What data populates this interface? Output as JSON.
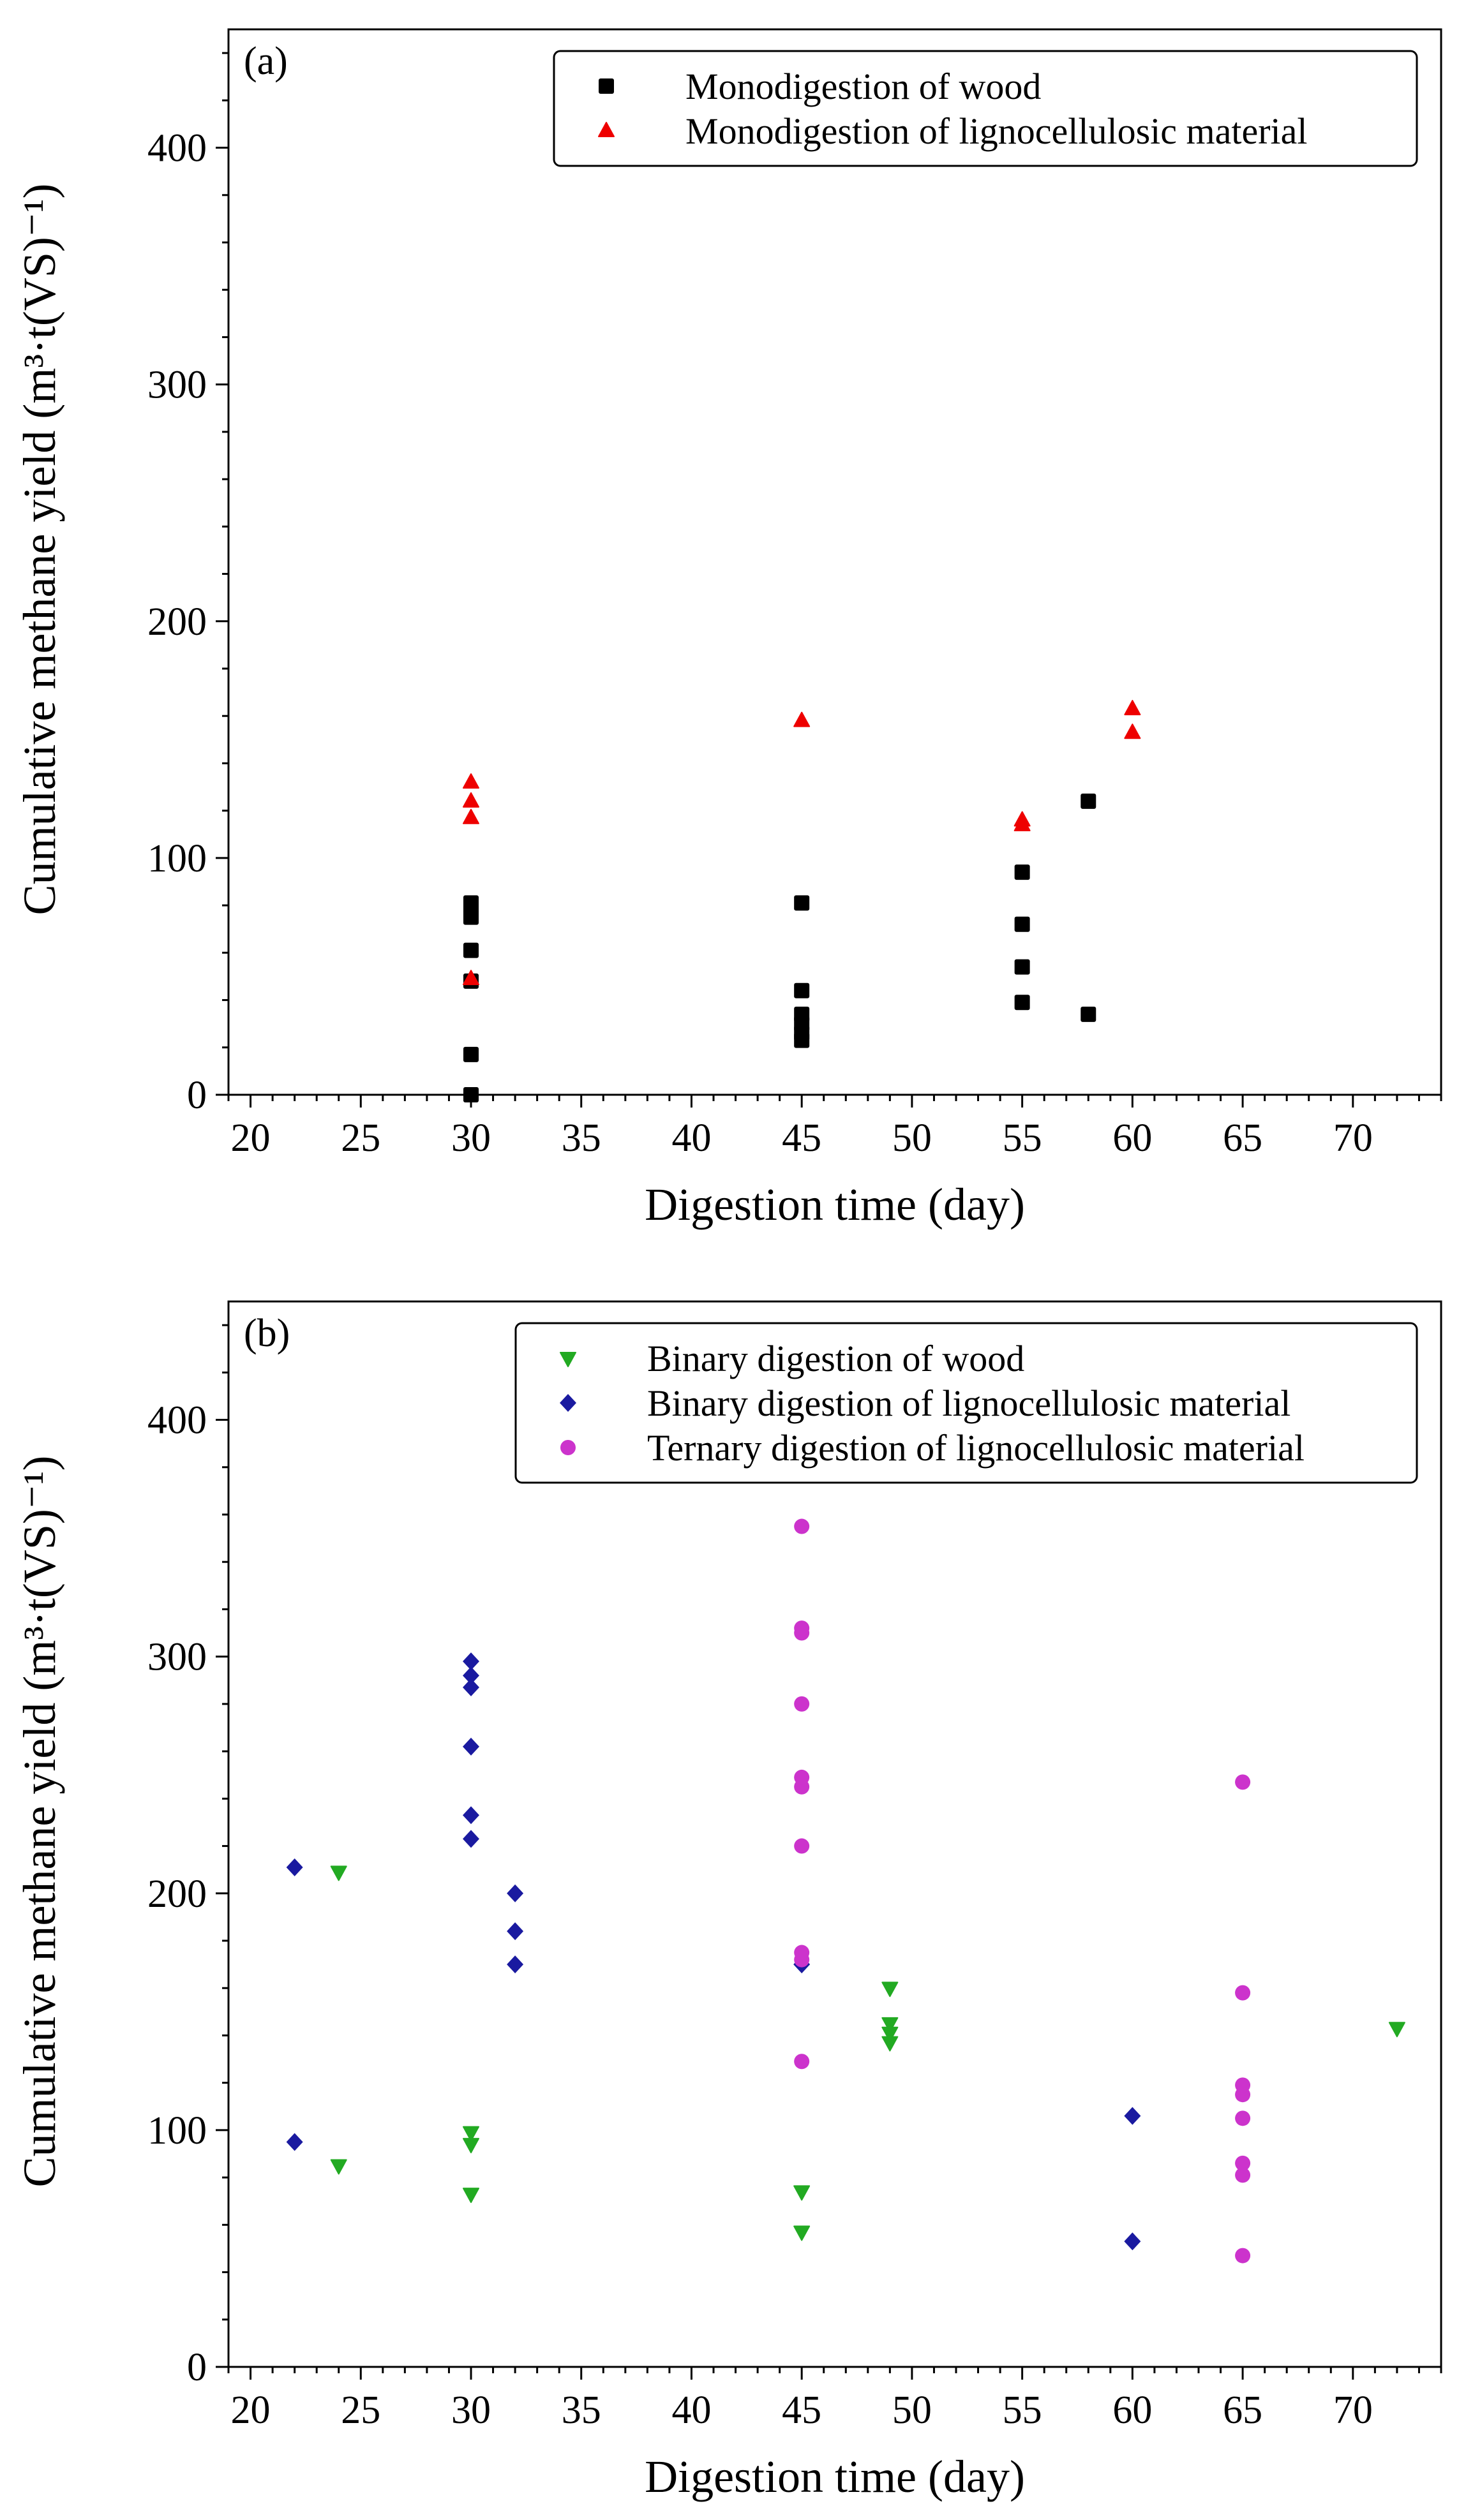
{
  "chart_data": [
    {
      "type": "scatter",
      "panel_label": "(a)",
      "xlabel": "Digestion time (day)",
      "ylabel": "Cumulative methane yield (m³·t(VS)⁻¹)",
      "xlim": [
        19,
        74
      ],
      "ylim": [
        0,
        450
      ],
      "xticks": [
        20,
        25,
        30,
        35,
        40,
        45,
        50,
        55,
        60,
        65,
        70
      ],
      "yticks": [
        0,
        100,
        200,
        300,
        400
      ],
      "legend_position": "top-right",
      "series": [
        {
          "name": "Monodigestion of wood",
          "marker": "square",
          "color": "#000000",
          "points": [
            [
              30,
              0
            ],
            [
              30,
              17
            ],
            [
              30,
              48
            ],
            [
              30,
              61
            ],
            [
              30,
              75
            ],
            [
              30,
              78
            ],
            [
              30,
              81
            ],
            [
              45,
              23
            ],
            [
              45,
              26
            ],
            [
              45,
              30
            ],
            [
              45,
              34
            ],
            [
              45,
              44
            ],
            [
              45,
              81
            ],
            [
              55,
              39
            ],
            [
              55,
              54
            ],
            [
              55,
              72
            ],
            [
              55,
              94
            ],
            [
              58,
              34
            ],
            [
              58,
              124
            ]
          ]
        },
        {
          "name": "Monodigestion of lignocellulosic material",
          "marker": "triangle-up",
          "color": "#ee0000",
          "points": [
            [
              30,
              49
            ],
            [
              30,
              117
            ],
            [
              30,
              124
            ],
            [
              30,
              132
            ],
            [
              45,
              158
            ],
            [
              55,
              114
            ],
            [
              55,
              116
            ],
            [
              60,
              153
            ],
            [
              60,
              163
            ]
          ]
        }
      ]
    },
    {
      "type": "scatter",
      "panel_label": "(b)",
      "xlabel": "Digestion time (day)",
      "ylabel": "Cumulative methane yield (m³·t(VS)⁻¹)",
      "xlim": [
        19,
        74
      ],
      "ylim": [
        0,
        450
      ],
      "xticks": [
        20,
        25,
        30,
        35,
        40,
        45,
        50,
        55,
        60,
        65,
        70
      ],
      "yticks": [
        0,
        100,
        200,
        300,
        400
      ],
      "legend_position": "top-right",
      "series": [
        {
          "name": "Binary digestion of wood",
          "marker": "triangle-down",
          "color": "#22aa22",
          "points": [
            [
              24,
              85
            ],
            [
              24,
              209
            ],
            [
              30,
              73
            ],
            [
              30,
              94
            ],
            [
              30,
              99
            ],
            [
              45,
              57
            ],
            [
              45,
              74
            ],
            [
              49,
              137
            ],
            [
              49,
              141
            ],
            [
              49,
              145
            ],
            [
              49,
              160
            ],
            [
              72,
              143
            ]
          ]
        },
        {
          "name": "Binary digestion of lignocellulosic material",
          "marker": "diamond",
          "color": "#1a1aa0",
          "points": [
            [
              22,
              95
            ],
            [
              22,
              211
            ],
            [
              30,
              223
            ],
            [
              30,
              233
            ],
            [
              30,
              262
            ],
            [
              30,
              287
            ],
            [
              30,
              292
            ],
            [
              30,
              298
            ],
            [
              32,
              170
            ],
            [
              32,
              184
            ],
            [
              32,
              200
            ],
            [
              45,
              170
            ],
            [
              60,
              53
            ],
            [
              60,
              106
            ]
          ]
        },
        {
          "name": "Ternary digestion of lignocellulosic material",
          "marker": "circle",
          "color": "#cc33cc",
          "points": [
            [
              45,
              129
            ],
            [
              45,
              172
            ],
            [
              45,
              175
            ],
            [
              45,
              220
            ],
            [
              45,
              245
            ],
            [
              45,
              249
            ],
            [
              45,
              280
            ],
            [
              45,
              310
            ],
            [
              45,
              312
            ],
            [
              45,
              355
            ],
            [
              65,
              47
            ],
            [
              65,
              81
            ],
            [
              65,
              86
            ],
            [
              65,
              105
            ],
            [
              65,
              115
            ],
            [
              65,
              119
            ],
            [
              65,
              158
            ],
            [
              65,
              247
            ]
          ]
        }
      ]
    }
  ]
}
